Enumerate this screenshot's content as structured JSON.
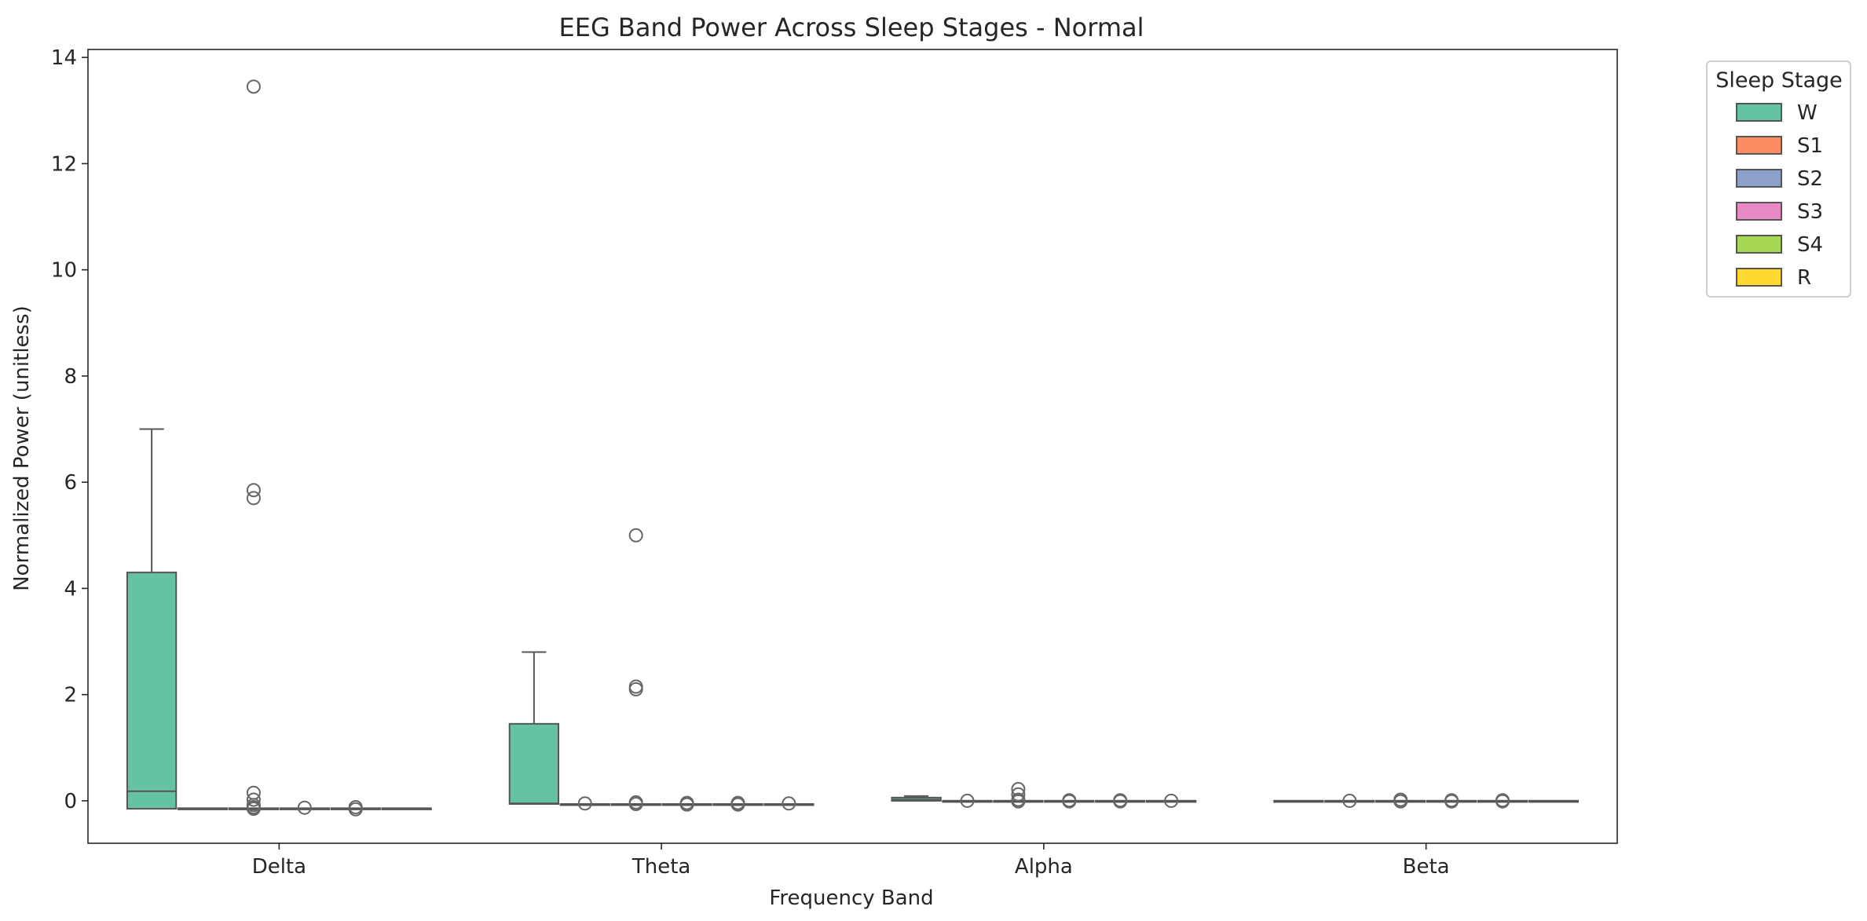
{
  "chart_data": {
    "type": "box",
    "title": "EEG Band Power Across Sleep Stages - Normal",
    "xlabel": "Frequency Band",
    "ylabel": "Normalized Power (unitless)",
    "categories": [
      "Delta",
      "Theta",
      "Alpha",
      "Beta"
    ],
    "ylim": [
      -0.8,
      14.15
    ],
    "yticks": [
      0,
      2,
      4,
      6,
      8,
      10,
      12,
      14
    ],
    "legend": {
      "title": "Sleep Stage",
      "placement": "outside-top-right"
    },
    "grid": false,
    "series": [
      {
        "name": "W",
        "color": "#66c2a5",
        "boxes": [
          {
            "q1": -0.15,
            "median": 0.18,
            "q3": 4.3,
            "whisker_low": -0.15,
            "whisker_high": 7.0,
            "outliers": []
          },
          {
            "q1": -0.06,
            "median": -0.05,
            "q3": 1.45,
            "whisker_low": -0.06,
            "whisker_high": 2.8,
            "outliers": []
          },
          {
            "q1": 0.0,
            "median": 0.02,
            "q3": 0.06,
            "whisker_low": 0.0,
            "whisker_high": 0.09,
            "outliers": []
          },
          {
            "q1": 0.0,
            "median": 0.0,
            "q3": 0.0,
            "whisker_low": 0.0,
            "whisker_high": 0.0,
            "outliers": []
          }
        ]
      },
      {
        "name": "S1",
        "color": "#fc8d62",
        "boxes": [
          {
            "q1": -0.15,
            "median": -0.15,
            "q3": -0.14,
            "whisker_low": -0.15,
            "whisker_high": -0.14,
            "outliers": []
          },
          {
            "q1": -0.06,
            "median": -0.06,
            "q3": -0.06,
            "whisker_low": -0.06,
            "whisker_high": -0.06,
            "outliers": [
              -0.05
            ]
          },
          {
            "q1": 0.0,
            "median": 0.0,
            "q3": 0.0,
            "whisker_low": 0.0,
            "whisker_high": 0.0,
            "outliers": [
              0.0
            ]
          },
          {
            "q1": 0.0,
            "median": 0.0,
            "q3": 0.0,
            "whisker_low": 0.0,
            "whisker_high": 0.0,
            "outliers": [
              0.0
            ]
          }
        ]
      },
      {
        "name": "S2",
        "color": "#8da0cb",
        "boxes": [
          {
            "q1": -0.15,
            "median": -0.15,
            "q3": -0.14,
            "whisker_low": -0.15,
            "whisker_high": -0.14,
            "outliers": [
              13.45,
              5.85,
              5.7,
              0.15,
              0.02,
              -0.08,
              -0.12,
              -0.15
            ]
          },
          {
            "q1": -0.06,
            "median": -0.06,
            "q3": -0.06,
            "whisker_low": -0.06,
            "whisker_high": -0.06,
            "outliers": [
              5.0,
              2.15,
              2.1,
              -0.03,
              -0.06
            ]
          },
          {
            "q1": 0.0,
            "median": 0.0,
            "q3": 0.0,
            "whisker_low": 0.0,
            "whisker_high": 0.0,
            "outliers": [
              0.22,
              0.12,
              0.02,
              -0.01
            ]
          },
          {
            "q1": 0.0,
            "median": 0.0,
            "q3": 0.0,
            "whisker_low": 0.0,
            "whisker_high": 0.0,
            "outliers": [
              0.02,
              -0.01
            ]
          }
        ]
      },
      {
        "name": "S3",
        "color": "#e78ac3",
        "boxes": [
          {
            "q1": -0.15,
            "median": -0.15,
            "q3": -0.14,
            "whisker_low": -0.15,
            "whisker_high": -0.14,
            "outliers": [
              -0.13
            ]
          },
          {
            "q1": -0.06,
            "median": -0.06,
            "q3": -0.06,
            "whisker_low": -0.06,
            "whisker_high": -0.06,
            "outliers": [
              -0.04,
              -0.07
            ]
          },
          {
            "q1": 0.0,
            "median": 0.0,
            "q3": 0.0,
            "whisker_low": 0.0,
            "whisker_high": 0.0,
            "outliers": [
              0.01,
              -0.01
            ]
          },
          {
            "q1": 0.0,
            "median": 0.0,
            "q3": 0.0,
            "whisker_low": 0.0,
            "whisker_high": 0.0,
            "outliers": [
              0.01,
              -0.01
            ]
          }
        ]
      },
      {
        "name": "S4",
        "color": "#a6d854",
        "boxes": [
          {
            "q1": -0.15,
            "median": -0.15,
            "q3": -0.14,
            "whisker_low": -0.15,
            "whisker_high": -0.14,
            "outliers": [
              -0.12,
              -0.16
            ]
          },
          {
            "q1": -0.06,
            "median": -0.06,
            "q3": -0.06,
            "whisker_low": -0.06,
            "whisker_high": -0.06,
            "outliers": [
              -0.04,
              -0.07
            ]
          },
          {
            "q1": 0.0,
            "median": 0.0,
            "q3": 0.0,
            "whisker_low": 0.0,
            "whisker_high": 0.0,
            "outliers": [
              0.01,
              -0.01
            ]
          },
          {
            "q1": 0.0,
            "median": 0.0,
            "q3": 0.0,
            "whisker_low": 0.0,
            "whisker_high": 0.0,
            "outliers": [
              0.01,
              -0.01
            ]
          }
        ]
      },
      {
        "name": "R",
        "color": "#ffd92f",
        "boxes": [
          {
            "q1": -0.15,
            "median": -0.15,
            "q3": -0.14,
            "whisker_low": -0.15,
            "whisker_high": -0.14,
            "outliers": []
          },
          {
            "q1": -0.06,
            "median": -0.06,
            "q3": -0.06,
            "whisker_low": -0.06,
            "whisker_high": -0.06,
            "outliers": [
              -0.05
            ]
          },
          {
            "q1": 0.0,
            "median": 0.0,
            "q3": 0.0,
            "whisker_low": 0.0,
            "whisker_high": 0.0,
            "outliers": [
              0.0
            ]
          },
          {
            "q1": 0.0,
            "median": 0.0,
            "q3": 0.0,
            "whisker_low": 0.0,
            "whisker_high": 0.0,
            "outliers": []
          }
        ]
      }
    ]
  }
}
